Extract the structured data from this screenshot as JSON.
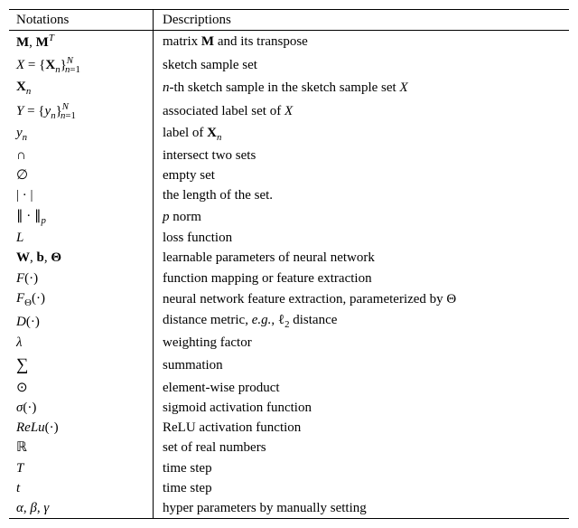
{
  "table": {
    "columns": [
      "Notations",
      "Descriptions"
    ],
    "rows": [
      {
        "n": "M_MT",
        "d": "matrix_transpose"
      },
      {
        "n": "X_set",
        "d": "sketch_set"
      },
      {
        "n": "Xn",
        "d": "nth_sketch"
      },
      {
        "n": "Y_set",
        "d": "label_set"
      },
      {
        "n": "yn",
        "d": "label_of"
      },
      {
        "n": "cap",
        "d": "intersect"
      },
      {
        "n": "empty",
        "d": "empty_set"
      },
      {
        "n": "abs",
        "d": "length_set"
      },
      {
        "n": "pnorm",
        "d": "p_norm"
      },
      {
        "n": "L",
        "d": "loss"
      },
      {
        "n": "Wb",
        "d": "learnable"
      },
      {
        "n": "F",
        "d": "mapping"
      },
      {
        "n": "FTheta",
        "d": "nn_extract"
      },
      {
        "n": "D",
        "d": "distance"
      },
      {
        "n": "lambda",
        "d": "weighting"
      },
      {
        "n": "sum",
        "d": "summation"
      },
      {
        "n": "odot",
        "d": "elementwise"
      },
      {
        "n": "sigma",
        "d": "sigmoid"
      },
      {
        "n": "relu",
        "d": "relu"
      },
      {
        "n": "R",
        "d": "reals"
      },
      {
        "n": "T",
        "d": "timestep_T"
      },
      {
        "n": "t",
        "d": "timestep_t"
      },
      {
        "n": "abg",
        "d": "hyper"
      }
    ],
    "strings": {
      "header_notations": "Notations",
      "header_descriptions": "Descriptions",
      "matrix_transpose": "matrix M and its transpose",
      "sketch_set": "sketch sample set",
      "nth_sketch_a": "n-th sketch sample in the sketch sample set ",
      "label_set_a": "associated label set of ",
      "label_of_a": "label of ",
      "intersect": "intersect two sets",
      "empty_set": "empty set",
      "length_set": "the length of the set.",
      "p_norm_a": "p",
      "p_norm_b": " norm",
      "loss": "loss function",
      "learnable": "learnable parameters of neural network",
      "mapping": "function mapping or feature extraction",
      "nn_extract": "neural network feature extraction, parameterized by Θ",
      "distance_a": "distance metric, ",
      "distance_b": "e.g.",
      "distance_c": ", ℓ",
      "distance_d": " distance",
      "weighting": "weighting factor",
      "summation": "summation",
      "elementwise": "element-wise product",
      "sigmoid": "sigmoid activation function",
      "relu": "ReLU activation function",
      "reals": "set of real numbers",
      "timestep_T": "time step",
      "timestep_t": "time step",
      "hyper": "hyper parameters by manually setting"
    }
  }
}
